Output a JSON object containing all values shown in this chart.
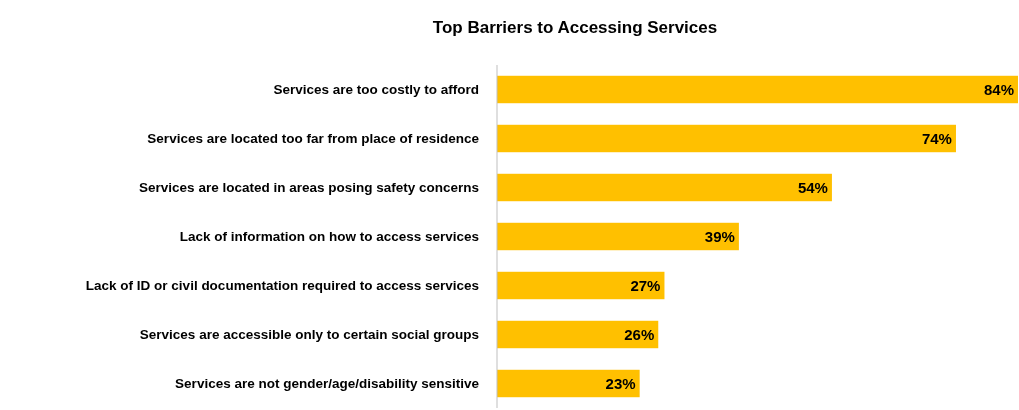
{
  "chart_data": {
    "type": "bar",
    "orientation": "horizontal",
    "title": "Top Barriers to Accessing Services",
    "categories": [
      "Services are too costly to afford",
      "Services are located too far from place of residence",
      "Services are located in areas posing safety concerns",
      "Lack of information on how to access services",
      "Lack of ID or civil documentation required to access services",
      "Services are accessible only to certain social groups",
      "Services are not gender/age/disability sensitive"
    ],
    "values": [
      84,
      74,
      54,
      39,
      27,
      26,
      23
    ],
    "value_labels": [
      "84%",
      "74%",
      "54%",
      "39%",
      "27%",
      "26%",
      "23%"
    ],
    "color": "#ffc000"
  }
}
